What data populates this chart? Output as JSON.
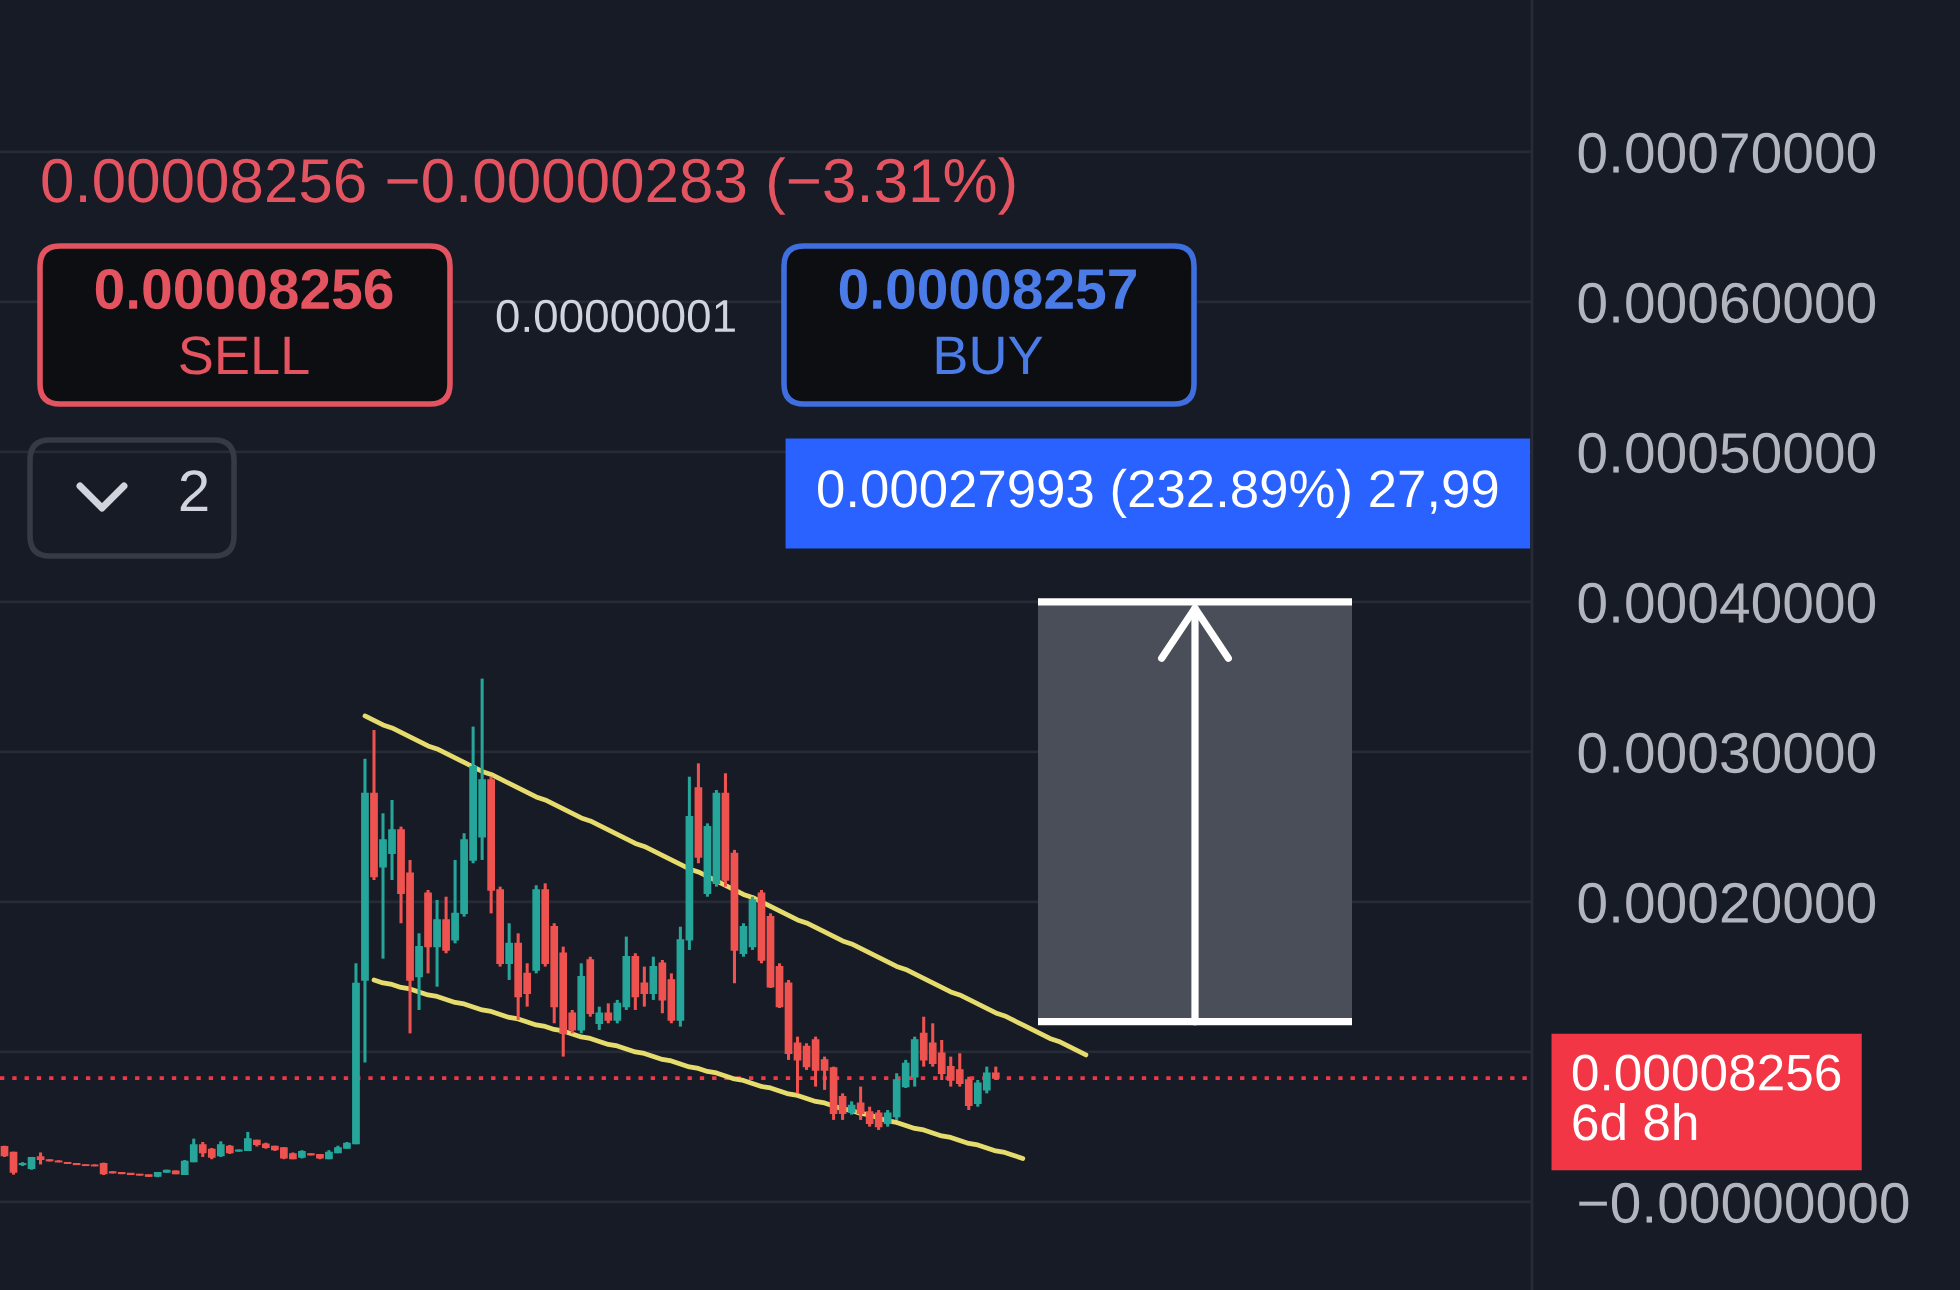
{
  "chart_data": {
    "type": "candlestick",
    "categories": [
      null,
      null,
      null,
      null,
      null,
      null,
      null,
      null,
      null,
      null,
      null,
      null,
      null,
      null,
      null,
      null,
      null,
      null,
      null,
      null,
      null,
      null,
      null,
      null,
      null,
      null,
      null,
      null,
      null,
      null,
      null,
      null,
      null,
      null,
      null,
      null,
      null,
      null,
      null,
      null,
      null,
      null,
      null,
      null,
      null,
      null,
      null,
      null,
      null,
      null,
      null,
      null,
      null,
      null,
      null,
      null,
      null,
      null,
      null,
      null,
      null,
      null,
      null,
      null,
      null,
      null,
      null,
      null,
      null,
      null,
      null,
      null,
      null,
      null,
      null,
      null,
      null,
      null,
      null,
      null,
      null,
      null,
      null,
      null,
      null,
      null,
      null,
      null,
      null,
      null,
      null,
      null,
      null,
      null,
      null,
      null,
      null,
      null,
      null,
      null,
      null,
      null,
      null,
      null,
      null,
      null,
      null,
      null,
      null,
      null,
      null,
      null,
      null,
      null,
      null,
      null,
      null,
      null,
      null,
      null,
      null,
      null,
      null,
      null,
      null,
      null,
      null,
      null,
      null,
      null,
      null,
      null,
      null,
      null,
      null,
      null,
      null,
      null,
      null,
      null,
      null,
      null,
      null,
      null,
      null,
      null,
      null,
      null,
      null,
      null,
      null,
      null,
      null,
      null,
      null,
      null,
      null,
      null,
      null,
      null,
      null,
      null,
      null,
      null,
      null,
      null,
      null,
      null,
      null,
      null
    ],
    "ohlc": [
      [
        3.69e-05,
        3.75e-05,
        3e-05,
        3.1e-05
      ],
      [
        3.3e-05,
        3.35e-05,
        1.82e-05,
        2e-05
      ],
      [
        2.5e-05,
        2.65e-05,
        2.4e-05,
        2.55e-05
      ],
      [
        2.25e-05,
        3e-05,
        2.15e-05,
        2.95e-05
      ],
      [
        3e-05,
        3.3e-05,
        2.5e-05,
        2.85e-05
      ],
      [
        2.8e-05,
        2.85e-05,
        2.7e-05,
        2.75e-05
      ],
      [
        2.72e-05,
        2.78e-05,
        2.65e-05,
        2.68e-05
      ],
      [
        2.62e-05,
        2.66e-05,
        2.55e-05,
        2.58e-05
      ],
      [
        2.55e-05,
        2.58e-05,
        2.48e-05,
        2.5e-05
      ],
      [
        2.47e-05,
        2.5e-05,
        2.4e-05,
        2.44e-05
      ],
      [
        2.45e-05,
        2.5e-05,
        2.38e-05,
        2.42e-05
      ],
      [
        2.55e-05,
        2.62e-05,
        1.8e-05,
        1.9e-05
      ],
      [
        2e-05,
        2.05e-05,
        1.9e-05,
        1.95e-05
      ],
      [
        1.95e-05,
        1.98e-05,
        1.85e-05,
        1.9e-05
      ],
      [
        1.9e-05,
        1.92e-05,
        1.8e-05,
        1.84e-05
      ],
      [
        1.84e-05,
        1.86e-05,
        1.76e-05,
        1.8e-05
      ],
      [
        1.8e-05,
        1.82e-05,
        1.68e-05,
        1.72e-05
      ],
      [
        1.72e-05,
        2e-05,
        1.65e-05,
        1.95e-05
      ],
      [
        2e-05,
        2.15e-05,
        1.95e-05,
        2.1e-05
      ],
      [
        2.05e-05,
        2.1e-05,
        1.85e-05,
        1.9e-05
      ],
      [
        1.85e-05,
        2.8e-05,
        1.8e-05,
        2.7e-05
      ],
      [
        2.7e-05,
        4.22e-05,
        2.65e-05,
        3.8e-05
      ],
      [
        3.8e-05,
        4e-05,
        3e-05,
        3.3e-05
      ],
      [
        3.5e-05,
        3.6e-05,
        2.85e-05,
        3e-05
      ],
      [
        3.1e-05,
        4.04e-05,
        3e-05,
        3.8e-05
      ],
      [
        3.7e-05,
        3.8e-05,
        3.2e-05,
        3.3e-05
      ],
      [
        3.4e-05,
        3.5e-05,
        3.35e-05,
        3.45e-05
      ],
      [
        3.45e-05,
        4.67e-05,
        3.4e-05,
        4.2e-05
      ],
      [
        4.1e-05,
        4.15e-05,
        3.7e-05,
        3.85e-05
      ],
      [
        3.85e-05,
        3.95e-05,
        3.55e-05,
        3.65e-05
      ],
      [
        3.7e-05,
        3.75e-05,
        3.4e-05,
        3.5e-05
      ],
      [
        3.6e-05,
        3.65e-05,
        2.85e-05,
        2.95e-05
      ],
      [
        3.2e-05,
        3.3e-05,
        2.85e-05,
        2.9e-05
      ],
      [
        3e-05,
        3.45e-05,
        2.9e-05,
        3.35e-05
      ],
      [
        3.2e-05,
        3.25e-05,
        3.1e-05,
        3.15e-05
      ],
      [
        3.15e-05,
        3.2e-05,
        2.85e-05,
        2.95e-05
      ],
      [
        2.9e-05,
        3.45e-05,
        2.85e-05,
        3.3e-05
      ],
      [
        3.3e-05,
        3.75e-05,
        3.25e-05,
        3.6e-05
      ],
      [
        3.6e-05,
        4e-05,
        3.55e-05,
        3.9e-05
      ],
      [
        3.9e-05,
        0.0001591,
        3.85e-05,
        0.0001457
      ],
      [
        0.000148,
        0.0002955,
        9.3e-05,
        0.0002724
      ],
      [
        0.0002724,
        0.0003146,
        0.0002146,
        0.0002169
      ],
      [
        0.0002235,
        0.0002591,
        0.0001622,
        0.0002413
      ],
      [
        0.0002324,
        0.000268,
        0.0002146,
        0.000248
      ],
      [
        0.000248,
        0.0002502,
        0.0001858,
        0.0002058
      ],
      [
        0.0002191,
        0.000228,
        0.0001124,
        0.000148
      ],
      [
        0.0001502,
        0.0001791,
        0.000128,
        0.0001702
      ],
      [
        0.0002058,
        0.000208,
        0.0001524,
        0.0001702
      ],
      [
        0.0001702,
        0.0002013,
        0.0001435,
        0.000188
      ],
      [
        0.000188,
        0.0002035,
        0.0001658,
        0.000168
      ],
      [
        0.0001747,
        0.000228,
        0.0001724,
        0.0001924
      ],
      [
        0.0001924,
        0.0002458,
        0.0001902,
        0.0002413
      ],
      [
        0.000228,
        0.0003169,
        0.0002258,
        0.0002902
      ],
      [
        0.0002435,
        0.0003489,
        0.000228,
        0.0002813
      ],
      [
        0.0002813,
        0.0002835,
        0.0001924,
        0.000208
      ],
      [
        0.000208,
        0.0002102,
        0.0001569,
        0.0001591
      ],
      [
        0.0001591,
        0.0001858,
        0.000148,
        0.0001724
      ],
      [
        0.0001724,
        0.0001791,
        0.0001213,
        0.0001369
      ],
      [
        0.0001524,
        0.0001591,
        0.0001302,
        0.0001391
      ],
      [
        0.0001546,
        0.0002111,
        0.0001524,
        0.000208
      ],
      [
        0.000208,
        0.0002124,
        0.0001569,
        0.0001591
      ],
      [
        0.0001835,
        0.0001858,
        0.0001191,
        0.0001302
      ],
      [
        0.0001658,
        0.0001702,
        9.69e-05,
        0.0001124
      ],
      [
        0.0001258,
        0.000128,
        0.0001124,
        0.0001147
      ],
      [
        0.0001147,
        0.0001591,
        0.0001124,
        0.0001502
      ],
      [
        0.0001613,
        0.0001635,
        0.0001235,
        0.0001258
      ],
      [
        0.0001191,
        0.0001302,
        0.0001147,
        0.0001258
      ],
      [
        0.0001258,
        0.0001324,
        0.0001191,
        0.0001213
      ],
      [
        0.0001213,
        0.0001347,
        0.0001191,
        0.0001324
      ],
      [
        0.0001302,
        0.0001769,
        0.000128,
        0.0001635
      ],
      [
        0.0001635,
        0.0001658,
        0.000128,
        0.0001369
      ],
      [
        0.0001458,
        0.0001569,
        0.0001302,
        0.0001391
      ],
      [
        0.0001391,
        0.0001635,
        0.0001347,
        0.0001569
      ],
      [
        0.0001591,
        0.0001613,
        0.0001258,
        0.0001347
      ],
      [
        0.000148,
        0.0001524,
        0.0001191,
        0.0001213
      ],
      [
        0.0001213,
        0.0001835,
        0.0001169,
        0.0001747
      ],
      [
        0.0001747,
        0.0002835,
        0.000168,
        0.0002569
      ],
      [
        0.000276,
        0.0002924,
        0.0002258,
        0.00023
      ],
      [
        0.0002058,
        0.0002524,
        0.0002035,
        0.0002502
      ],
      [
        0.0002124,
        0.0002746,
        0.0002102,
        0.0002724
      ],
      [
        0.0002724,
        0.0002858,
        0.0002102,
        0.0002146
      ],
      [
        0.0002324,
        0.0002347,
        0.0001458,
        0.000168
      ],
      [
        0.0001658,
        0.0001858,
        0.0001635,
        0.0001835
      ],
      [
        0.0001702,
        0.0002035,
        0.000168,
        0.0002013
      ],
      [
        0.0002058,
        0.000208,
        0.0001591,
        0.0001613
      ],
      [
        0.0001902,
        0.0001924,
        0.0001427,
        0.0001435
      ],
      [
        0.0001569,
        0.0001591,
        0.0001293,
        0.0001302
      ],
      [
        0.0001458,
        0.000148,
        9.47e-05,
        9.91e-05
      ],
      [
        0.0001058,
        0.0001102,
        7.24e-05,
        9.47e-05
      ],
      [
        0.0001036,
        0.0001058,
        8.8e-05,
        9.02e-05
      ],
      [
        0.000108,
        0.0001102,
        7.69e-05,
        8.8e-05
      ],
      [
        9.47e-05,
        9.69e-05,
        7.47e-05,
        8.8e-05
      ],
      [
        8.93e-05,
        9.02e-05,
        5.47e-05,
        5.91e-05
      ],
      [
        7.02e-05,
        7.24e-05,
        5.47e-05,
        5.91e-05
      ],
      [
        6e-05,
        6.71e-05,
        5.82e-05,
        6.44e-05
      ],
      [
        6.58e-05,
        7.69e-05,
        5.47e-05,
        5.91e-05
      ],
      [
        6e-05,
        6.35e-05,
        5.02e-05,
        5.24e-05
      ],
      [
        5.91e-05,
        6.13e-05,
        4.8e-05,
        5.02e-05
      ],
      [
        5.24e-05,
        6.13e-05,
        5.02e-05,
        5.91e-05
      ],
      [
        5.69e-05,
        8.58e-05,
        5.47e-05,
        8.13e-05
      ],
      [
        7.69e-05,
        9.47e-05,
        7.6e-05,
        9.24e-05
      ],
      [
        8.35e-05,
        0.0001102,
        7.69e-05,
        0.000108
      ],
      [
        0.0001124,
        0.0001235,
        9.02e-05,
        9.47e-05
      ],
      [
        0.0001058,
        0.0001191,
        9.02e-05,
        9.24e-05
      ],
      [
        9.91e-05,
        0.000108,
        8.13e-05,
        8.58e-05
      ],
      [
        9.02e-05,
        9.69e-05,
        7.69e-05,
        8.13e-05
      ],
      [
        8.8e-05,
        9.91e-05,
        7.69e-05,
        7.91e-05
      ],
      [
        8.13e-05,
        8.35e-05,
        6.13e-05,
        6.44e-05
      ],
      [
        6.58e-05,
        8.13e-05,
        6.35e-05,
        7.91e-05
      ],
      [
        7.47e-05,
        9.02e-05,
        7.24e-05,
        8.58e-05
      ],
      [
        8.58e-05,
        9.02e-05,
        8.13e-05,
        8.256e-05
      ],
      null,
      null,
      null,
      null,
      null,
      null,
      null,
      null,
      null,
      null,
      null,
      null,
      null,
      null,
      null,
      null,
      null,
      null,
      null,
      null,
      null,
      null,
      null,
      null,
      null,
      null,
      null,
      null,
      null,
      null,
      null,
      null,
      null,
      null,
      null,
      null,
      null,
      null,
      null,
      null,
      null,
      null,
      null,
      null,
      null,
      null,
      null,
      null,
      null,
      null,
      null,
      null,
      null,
      null,
      null,
      null,
      null,
      null,
      null
    ],
    "colors": [
      "#ef5350",
      "#ef5350",
      "#26a69a",
      "#26a69a",
      "#ef5350",
      "#ef5350",
      "#ef5350",
      "#ef5350",
      "#ef5350",
      "#ef5350",
      "#ef5350",
      "#ef5350",
      "#ef5350",
      "#ef5350",
      "#ef5350",
      "#ef5350",
      "#ef5350",
      "#26a69a",
      "#26a69a",
      "#ef5350",
      "#26a69a",
      "#26a69a",
      "#ef5350",
      "#ef5350",
      "#26a69a",
      "#ef5350",
      "#26a69a",
      "#26a69a",
      "#ef5350",
      "#ef5350",
      "#ef5350",
      "#ef5350",
      "#ef5350",
      "#26a69a",
      "#ef5350",
      "#ef5350",
      "#26a69a",
      "#26a69a",
      "#26a69a",
      "#26a69a",
      "#26a69a",
      "#ef5350",
      "#26a69a",
      "#26a69a",
      "#ef5350",
      "#ef5350",
      "#26a69a",
      "#ef5350",
      "#26a69a",
      "#ef5350",
      "#26a69a",
      "#26a69a",
      "#26a69a",
      "#26a69a",
      "#ef5350",
      "#ef5350",
      "#26a69a",
      "#ef5350",
      "#ef5350",
      "#26a69a",
      "#ef5350",
      "#ef5350",
      "#ef5350",
      "#ef5350",
      "#26a69a",
      "#ef5350",
      "#26a69a",
      "#ef5350",
      "#26a69a",
      "#26a69a",
      "#ef5350",
      "#ef5350",
      "#26a69a",
      "#ef5350",
      "#ef5350",
      "#26a69a",
      "#26a69a",
      "#ef5350",
      "#26a69a",
      "#26a69a",
      "#ef5350",
      "#ef5350",
      "#26a69a",
      "#26a69a",
      "#ef5350",
      "#ef5350",
      "#ef5350",
      "#ef5350",
      "#ef5350",
      "#ef5350",
      "#ef5350",
      "#ef5350",
      "#ef5350",
      "#ef5350",
      "#26a69a",
      "#ef5350",
      "#ef5350",
      "#ef5350",
      "#26a69a",
      "#26a69a",
      "#26a69a",
      "#26a69a",
      "#ef5350",
      "#ef5350",
      "#ef5350",
      "#ef5350",
      "#ef5350",
      "#ef5350",
      "#26a69a",
      "#26a69a",
      "#ef5350",
      null,
      null,
      null,
      null,
      null,
      null,
      null,
      null,
      null,
      null,
      null,
      null,
      null,
      null,
      null,
      null,
      null,
      null,
      null,
      null,
      null,
      null,
      null,
      null,
      null,
      null,
      null,
      null,
      null,
      null,
      null,
      null,
      null,
      null,
      null,
      null,
      null,
      null,
      null,
      null,
      null,
      null,
      null,
      null,
      null,
      null,
      null,
      null,
      null,
      null,
      null,
      null,
      null,
      null,
      null,
      null,
      null,
      null,
      null
    ],
    "series": [
      {
        "type": "line",
        "color": "#e6dc6e",
        "values": [
          null,
          null,
          null,
          null,
          null,
          null,
          null,
          null,
          null,
          null,
          null,
          null,
          null,
          null,
          null,
          null,
          null,
          null,
          null,
          null,
          null,
          null,
          null,
          null,
          null,
          null,
          null,
          null,
          null,
          null,
          null,
          null,
          null,
          null,
          null,
          null,
          null,
          null,
          null,
          null,
          0.000324,
          0.000321,
          0.000318,
          0.000316,
          0.000313,
          0.00031,
          0.000307,
          0.000304,
          0.000302,
          0.000299,
          0.000296,
          0.000293,
          0.00029,
          0.000287,
          0.000285,
          0.000282,
          0.000279,
          0.000276,
          0.000273,
          0.00027,
          0.000268,
          0.000265,
          0.000262,
          0.000259,
          0.000256,
          0.000254,
          0.000251,
          0.000248,
          0.000245,
          0.000242,
          0.000239,
          0.000237,
          0.000234,
          0.000231,
          0.000228,
          0.000225,
          0.000222,
          0.00022,
          0.000217,
          0.000214,
          0.000211,
          0.000208,
          0.000205,
          0.000203,
          0.0002,
          0.000197,
          0.000194,
          0.000191,
          0.000188,
          0.000186,
          0.000183,
          0.00018,
          0.000177,
          0.000174,
          0.000172,
          0.000169,
          0.000166,
          0.000163,
          0.00016,
          0.000157,
          0.000155,
          0.000152,
          0.000149,
          0.000146,
          0.000143,
          0.00014,
          0.000138,
          0.000135,
          0.000132,
          0.000129,
          0.000126,
          0.000124,
          0.000121,
          0.000118,
          0.000115,
          0.000112,
          0.000109,
          0.000107,
          0.000104,
          0.000101,
          9.8e-05,
          null,
          null,
          null,
          null,
          null,
          null,
          null,
          null,
          null,
          null,
          null,
          null,
          null,
          null,
          null,
          null,
          null,
          null,
          null,
          null,
          null,
          null,
          null,
          null,
          null,
          null,
          null,
          null,
          null,
          null,
          null,
          null,
          null,
          null,
          null,
          null,
          null,
          null,
          null,
          null,
          null,
          null,
          null,
          null,
          null,
          null,
          null,
          null,
          null
        ]
      },
      {
        "type": "line",
        "color": "#e6dc6e",
        "values": [
          null,
          null,
          null,
          null,
          null,
          null,
          null,
          null,
          null,
          null,
          null,
          null,
          null,
          null,
          null,
          null,
          null,
          null,
          null,
          null,
          null,
          null,
          null,
          null,
          null,
          null,
          null,
          null,
          null,
          null,
          null,
          null,
          null,
          null,
          null,
          null,
          null,
          null,
          null,
          null,
          null,
          0.000148,
          0.000146,
          0.000145,
          0.000143,
          0.000142,
          0.00014,
          0.000138,
          0.000137,
          0.000135,
          0.000133,
          0.000132,
          0.00013,
          0.000128,
          0.000127,
          0.000125,
          0.000123,
          0.000122,
          0.00012,
          0.000118,
          0.000117,
          0.000115,
          0.000114,
          0.000112,
          0.00011,
          0.000109,
          0.000107,
          0.000105,
          0.000104,
          0.000102,
          0.0001,
          9.9e-05,
          9.7e-05,
          9.5e-05,
          9.4e-05,
          9.2e-05,
          9e-05,
          8.9e-05,
          8.7e-05,
          8.6e-05,
          8.4e-05,
          8.2e-05,
          8.1e-05,
          7.9e-05,
          7.7e-05,
          7.6e-05,
          7.4e-05,
          7.2e-05,
          7.1e-05,
          6.9e-05,
          6.7e-05,
          6.6e-05,
          6.4e-05,
          6.2e-05,
          6.1e-05,
          5.9e-05,
          5.8e-05,
          5.6e-05,
          5.4e-05,
          5.3e-05,
          5.1e-05,
          4.9e-05,
          4.8e-05,
          4.6e-05,
          4.4e-05,
          4.3e-05,
          4.1e-05,
          3.9e-05,
          3.8e-05,
          3.6e-05,
          3.4e-05,
          3.3e-05,
          3.1e-05,
          2.9e-05,
          null,
          null,
          null,
          null,
          null,
          null,
          null,
          null,
          null,
          null,
          null,
          null,
          null,
          null,
          null,
          null,
          null,
          null,
          null,
          null,
          null,
          null,
          null,
          null,
          null,
          null,
          null,
          null,
          null,
          null,
          null,
          null,
          null,
          null,
          null,
          null,
          null,
          null,
          null,
          null,
          null,
          null,
          null,
          null,
          null,
          null,
          null,
          null,
          null,
          null,
          null,
          null,
          null,
          null,
          null,
          null
        ]
      }
    ],
    "ylim": [
      -5.87e-05,
      0.0008013
    ],
    "yticks": [
      {
        "value": 0,
        "label": "−0.00000000"
      },
      {
        "value": 0.0001,
        "label": null
      },
      {
        "value": 0.0002,
        "label": "0.00020000"
      },
      {
        "value": 0.0003,
        "label": "0.00030000"
      },
      {
        "value": 0.0004,
        "label": "0.00040000"
      },
      {
        "value": 0.0005,
        "label": "0.00050000"
      },
      {
        "value": 0.0006,
        "label": "0.00060000"
      },
      {
        "value": 0.0007,
        "label": "0.00070000"
      }
    ],
    "tick_labels": "y",
    "grid": "y",
    "ref_lines": [
      {
        "axis": "y",
        "value": 8.256e-05,
        "label": "0.00008256\n6d 8h",
        "color": "#f23645",
        "line_style": "dotted"
      }
    ],
    "bands": [
      {
        "axis": "y",
        "from": 0.0001202,
        "to": 0.0004001,
        "label": "0.00027993 (232.89%) 27,99",
        "color": "#4a4e58"
      }
    ],
    "annotations": [
      "0.00008256 −0.00000283 (−3.31%)",
      "0.00008256",
      "SELL",
      "0.00000001",
      "0.00008257",
      "BUY",
      "2"
    ]
  }
}
